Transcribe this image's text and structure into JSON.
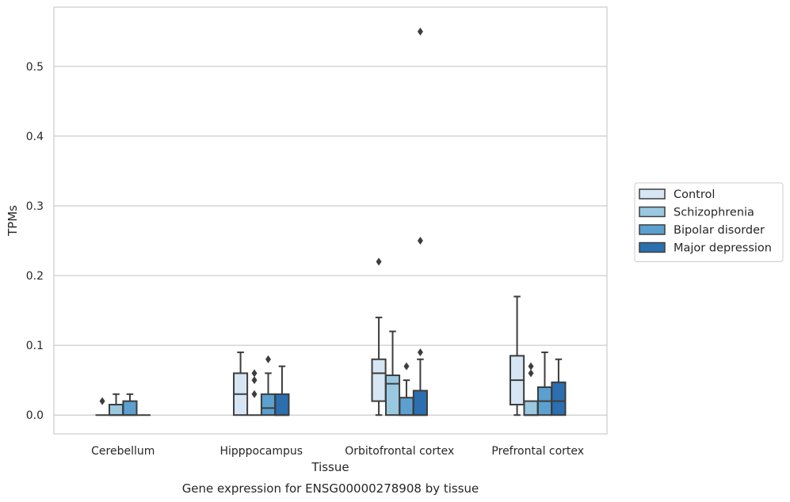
{
  "chart_data": {
    "type": "boxplot",
    "title": "",
    "caption": "Gene expression for ENSG00000278908 by tissue",
    "xlabel": "Tissue",
    "ylabel": "TPMs",
    "ylim": [
      -0.027,
      0.585
    ],
    "yticks": [
      0.0,
      0.1,
      0.2,
      0.3,
      0.4,
      0.5
    ],
    "ytick_labels": [
      "0.0",
      "0.1",
      "0.2",
      "0.3",
      "0.4",
      "0.5"
    ],
    "grid": "y",
    "legend_position": "right",
    "categories": [
      "Cerebellum",
      "Hipppocampus",
      "Orbitofrontal cortex",
      "Prefrontal cortex"
    ],
    "series": [
      {
        "name": "Control",
        "color": "#d6e6f4",
        "boxes": [
          {
            "whislo": 0.0,
            "q1": 0.0,
            "med": 0.0,
            "q3": 0.0,
            "whishi": 0.0,
            "fliers": [
              0.02
            ]
          },
          {
            "whislo": 0.0,
            "q1": 0.0,
            "med": 0.03,
            "q3": 0.06,
            "whishi": 0.09,
            "fliers": []
          },
          {
            "whislo": 0.0,
            "q1": 0.02,
            "med": 0.06,
            "q3": 0.08,
            "whishi": 0.14,
            "fliers": [
              0.22
            ]
          },
          {
            "whislo": 0.0,
            "q1": 0.015,
            "med": 0.05,
            "q3": 0.085,
            "whishi": 0.17,
            "fliers": []
          }
        ]
      },
      {
        "name": "Schizophrenia",
        "color": "#9ac8e0",
        "boxes": [
          {
            "whislo": 0.0,
            "q1": 0.0,
            "med": 0.0,
            "q3": 0.015,
            "whishi": 0.03,
            "fliers": []
          },
          {
            "whislo": 0.0,
            "q1": 0.0,
            "med": 0.0,
            "q3": 0.0,
            "whishi": 0.0,
            "fliers": [
              0.03,
              0.05,
              0.06
            ]
          },
          {
            "whislo": 0.0,
            "q1": 0.0,
            "med": 0.045,
            "q3": 0.057,
            "whishi": 0.12,
            "fliers": []
          },
          {
            "whislo": 0.0,
            "q1": 0.0,
            "med": 0.0,
            "q3": 0.02,
            "whishi": 0.02,
            "fliers": [
              0.06,
              0.07
            ]
          }
        ]
      },
      {
        "name": "Bipolar disorder",
        "color": "#5ba0cf",
        "boxes": [
          {
            "whislo": 0.0,
            "q1": 0.0,
            "med": 0.0,
            "q3": 0.02,
            "whishi": 0.03,
            "fliers": []
          },
          {
            "whislo": 0.0,
            "q1": 0.0,
            "med": 0.01,
            "q3": 0.03,
            "whishi": 0.06,
            "fliers": [
              0.08
            ]
          },
          {
            "whislo": 0.0,
            "q1": 0.0,
            "med": 0.0,
            "q3": 0.025,
            "whishi": 0.05,
            "fliers": [
              0.07
            ]
          },
          {
            "whislo": 0.0,
            "q1": 0.0,
            "med": 0.02,
            "q3": 0.04,
            "whishi": 0.09,
            "fliers": []
          }
        ]
      },
      {
        "name": "Major depression",
        "color": "#2b6fb0",
        "boxes": [
          {
            "whislo": 0.0,
            "q1": 0.0,
            "med": 0.0,
            "q3": 0.0,
            "whishi": 0.0,
            "fliers": []
          },
          {
            "whislo": 0.0,
            "q1": 0.0,
            "med": 0.0,
            "q3": 0.03,
            "whishi": 0.07,
            "fliers": []
          },
          {
            "whislo": 0.0,
            "q1": 0.0,
            "med": 0.0,
            "q3": 0.035,
            "whishi": 0.08,
            "fliers": [
              0.09,
              0.25,
              0.55
            ]
          },
          {
            "whislo": 0.0,
            "q1": 0.0,
            "med": 0.02,
            "q3": 0.047,
            "whishi": 0.08,
            "fliers": []
          }
        ]
      }
    ]
  }
}
